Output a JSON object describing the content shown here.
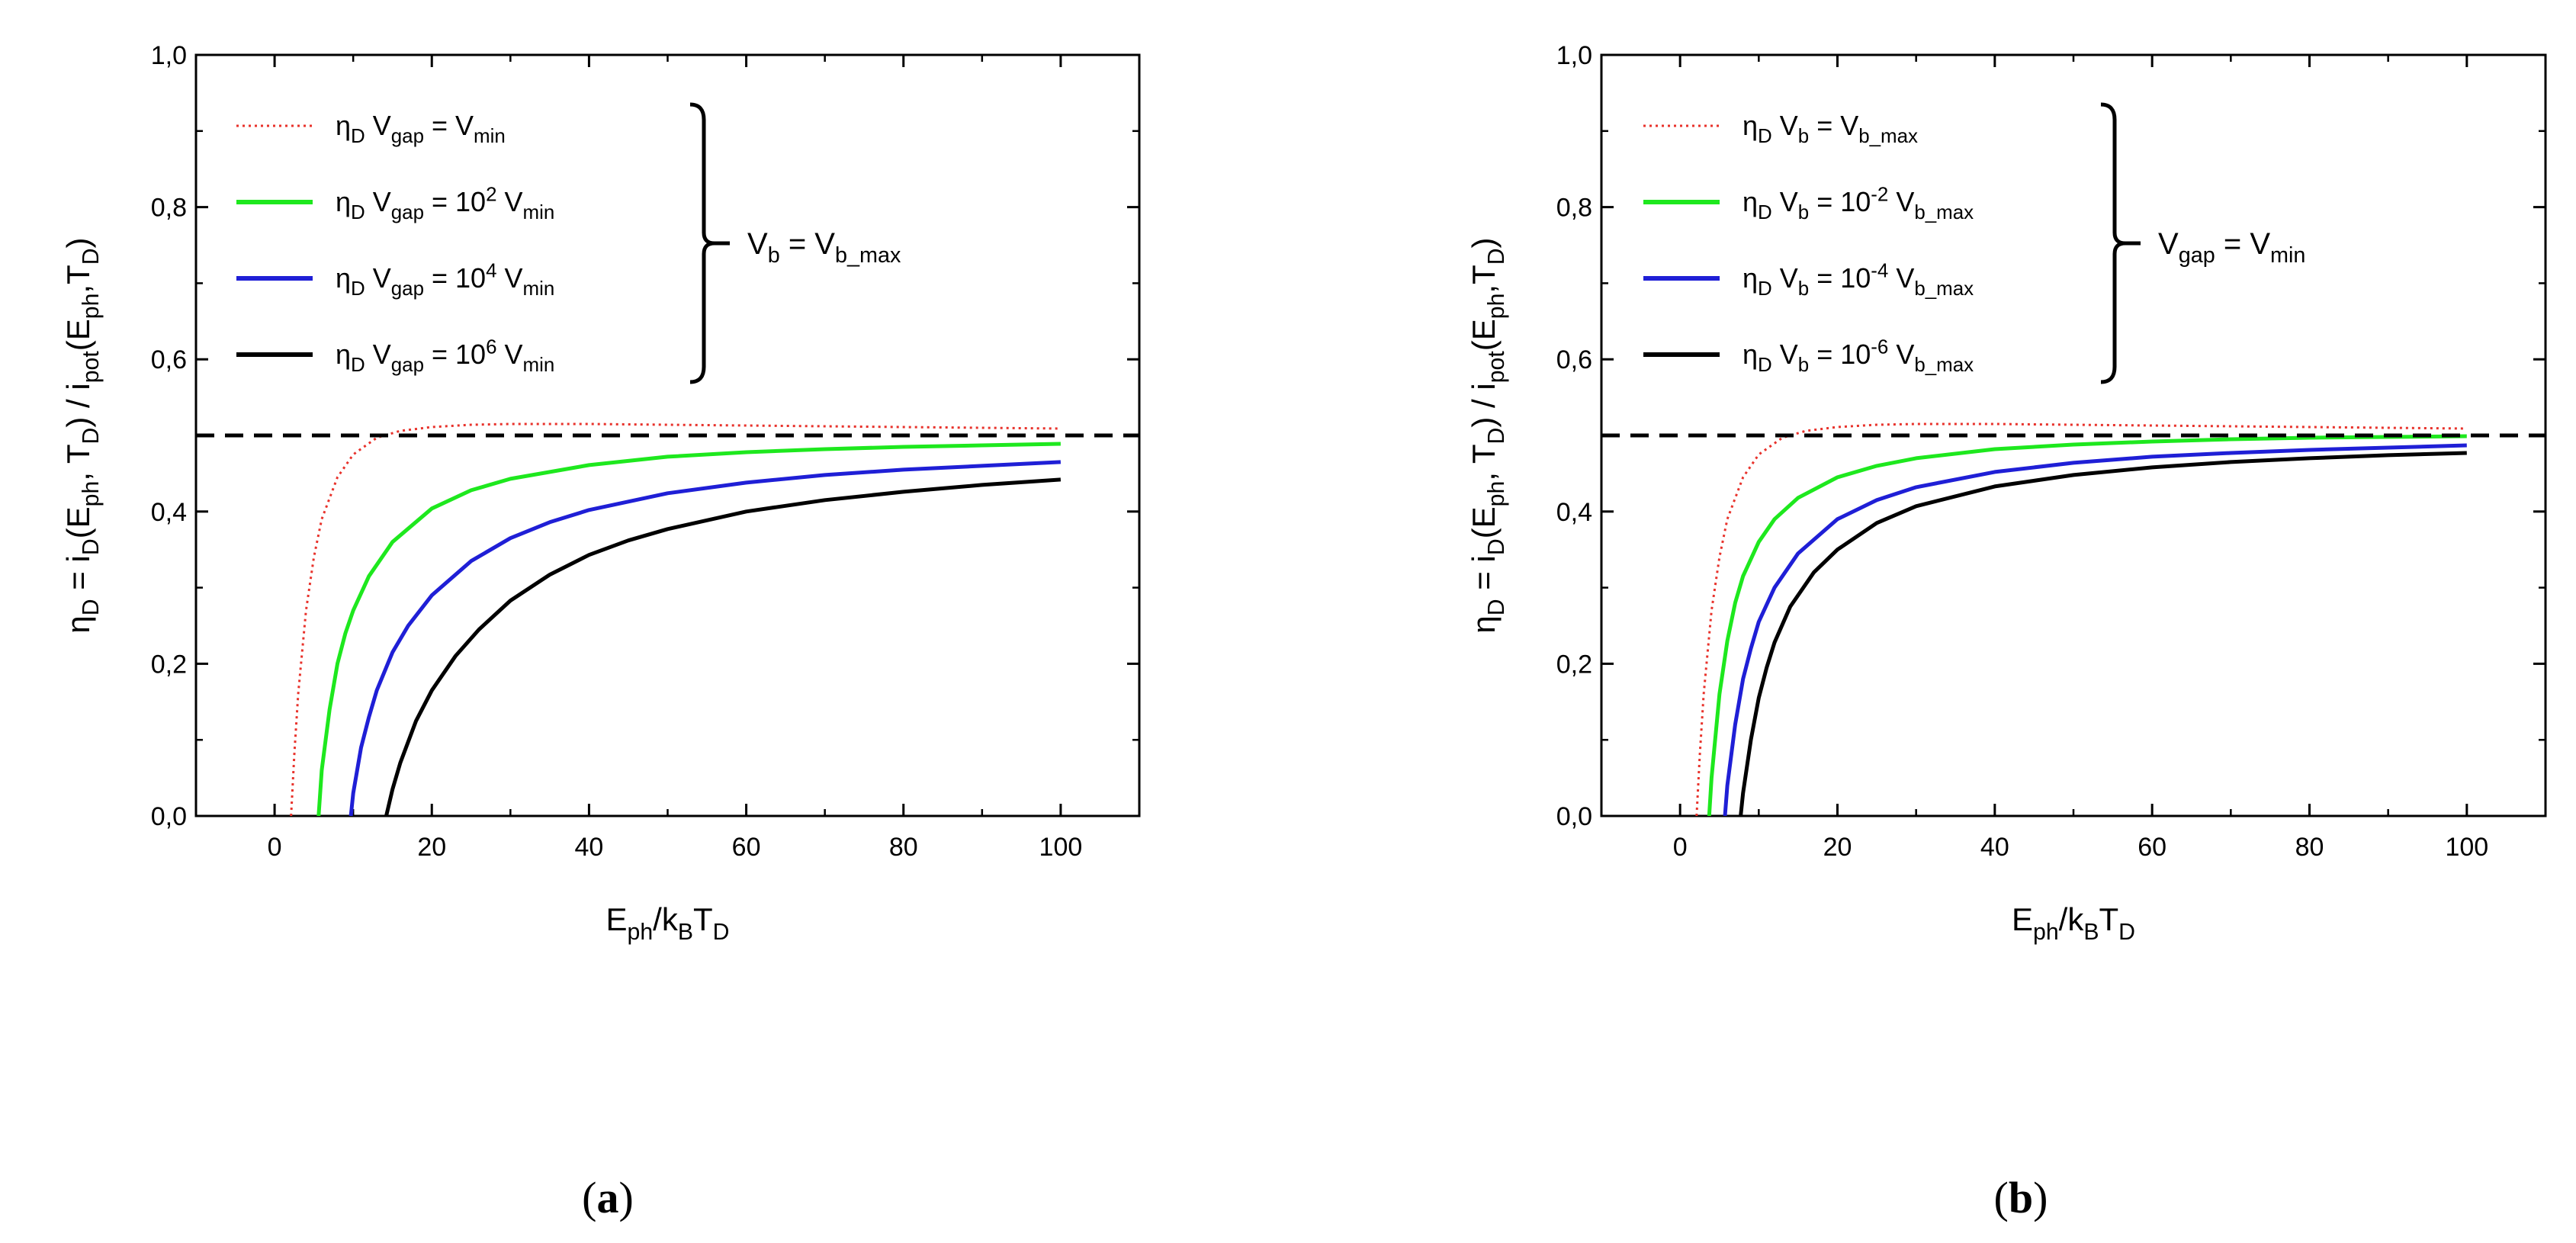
{
  "chart_data": [
    {
      "type": "line",
      "panel": "(a)",
      "panel_label": "(a)",
      "xlabel": "E_ph/k_BT_D",
      "xlabel_parts": [
        [
          "E",
          ""
        ],
        [
          "ph",
          "sub"
        ],
        [
          "/k",
          ""
        ],
        [
          "B",
          "sub"
        ],
        [
          "T",
          ""
        ],
        [
          "D",
          "sub"
        ]
      ],
      "ylabel": "η_D = i_D(E_ph, T_D) / i_pot(E_ph, T_D)",
      "ylabel_parts": [
        [
          "η",
          ""
        ],
        [
          "D",
          "sub"
        ],
        [
          " = i",
          ""
        ],
        [
          "D",
          "sub"
        ],
        [
          "(E",
          ""
        ],
        [
          "ph",
          "sub"
        ],
        [
          ", T",
          ""
        ],
        [
          "D",
          "sub"
        ],
        [
          ") / i",
          ""
        ],
        [
          "pot",
          "sub"
        ],
        [
          "(E",
          ""
        ],
        [
          "ph",
          "sub"
        ],
        [
          ",T",
          ""
        ],
        [
          "D",
          "sub"
        ],
        [
          ")",
          ""
        ]
      ],
      "xlim": [
        -10,
        110
      ],
      "ylim": [
        0.0,
        1.0
      ],
      "xticks": [
        "0",
        "20",
        "40",
        "60",
        "80",
        "100"
      ],
      "yticks": [
        "0,0",
        "0,2",
        "0,4",
        "0,6",
        "0,8",
        "1,0"
      ],
      "reference_line": {
        "y": 0.5,
        "style": "dashed",
        "color": "#000000"
      },
      "series": [
        {
          "name": "η_D V_gap = V_min",
          "color": "#e8322b",
          "style": "dotted",
          "legend_parts": [
            [
              "η",
              ""
            ],
            [
              "D",
              "sub"
            ],
            [
              "  V",
              ""
            ],
            [
              "gap",
              "sub"
            ],
            [
              " = V",
              ""
            ],
            [
              "min",
              "sub"
            ]
          ],
          "x": [
            2.1,
            2.5,
            3,
            4,
            5,
            6,
            8,
            10,
            13,
            16,
            20,
            25,
            30,
            40,
            50,
            60,
            70,
            80,
            90,
            100
          ],
          "y": [
            0.0,
            0.08,
            0.16,
            0.27,
            0.34,
            0.39,
            0.445,
            0.475,
            0.497,
            0.506,
            0.511,
            0.514,
            0.515,
            0.515,
            0.514,
            0.513,
            0.512,
            0.511,
            0.51,
            0.509
          ]
        },
        {
          "name": "η_D V_gap = 10^2 V_min",
          "color": "#1ee81e",
          "style": "solid",
          "legend_parts": [
            [
              "η",
              ""
            ],
            [
              "D",
              "sub"
            ],
            [
              "  V",
              ""
            ],
            [
              "gap",
              "sub"
            ],
            [
              " = 10",
              ""
            ],
            [
              "2",
              "sup"
            ],
            [
              " V",
              ""
            ],
            [
              "min",
              "sub"
            ]
          ],
          "x": [
            5.6,
            6,
            7,
            8,
            9,
            10,
            12,
            15,
            20,
            25,
            30,
            40,
            50,
            60,
            70,
            80,
            90,
            100
          ],
          "y": [
            0.0,
            0.06,
            0.14,
            0.2,
            0.24,
            0.27,
            0.315,
            0.36,
            0.404,
            0.428,
            0.443,
            0.461,
            0.472,
            0.478,
            0.482,
            0.485,
            0.487,
            0.489
          ]
        },
        {
          "name": "η_D V_gap = 10^4 V_min",
          "color": "#1f1fd6",
          "style": "solid",
          "legend_parts": [
            [
              "η",
              ""
            ],
            [
              "D",
              "sub"
            ],
            [
              "  V",
              ""
            ],
            [
              "gap",
              "sub"
            ],
            [
              " = 10",
              ""
            ],
            [
              "4",
              "sup"
            ],
            [
              " V",
              ""
            ],
            [
              "min",
              "sub"
            ]
          ],
          "x": [
            9.7,
            10,
            11,
            12,
            13,
            15,
            17,
            20,
            25,
            30,
            35,
            40,
            50,
            60,
            70,
            80,
            90,
            100
          ],
          "y": [
            0.0,
            0.03,
            0.09,
            0.13,
            0.165,
            0.215,
            0.25,
            0.29,
            0.335,
            0.365,
            0.386,
            0.402,
            0.424,
            0.438,
            0.448,
            0.455,
            0.46,
            0.465
          ]
        },
        {
          "name": "η_D V_gap = 10^6 V_min",
          "color": "#000000",
          "style": "solid",
          "legend_parts": [
            [
              "η",
              ""
            ],
            [
              "D",
              "sub"
            ],
            [
              "  V",
              ""
            ],
            [
              "gap",
              "sub"
            ],
            [
              " = 10",
              ""
            ],
            [
              "6",
              "sup"
            ],
            [
              " V",
              ""
            ],
            [
              "min",
              "sub"
            ]
          ],
          "x": [
            14.2,
            15,
            16,
            18,
            20,
            23,
            26,
            30,
            35,
            40,
            45,
            50,
            60,
            70,
            80,
            90,
            100
          ],
          "y": [
            0.0,
            0.035,
            0.07,
            0.125,
            0.165,
            0.21,
            0.245,
            0.283,
            0.317,
            0.343,
            0.362,
            0.377,
            0.4,
            0.415,
            0.426,
            0.435,
            0.442
          ]
        }
      ],
      "bracket_label": "V_b = V_b_max",
      "bracket_parts": [
        [
          "V",
          ""
        ],
        [
          "b",
          "sub"
        ],
        [
          " = V",
          ""
        ],
        [
          "b_max",
          "sub"
        ]
      ]
    },
    {
      "type": "line",
      "panel": "(b)",
      "panel_label": "(b)",
      "xlabel": "E_ph/k_BT_D",
      "xlabel_parts": [
        [
          "E",
          ""
        ],
        [
          "ph",
          "sub"
        ],
        [
          "/k",
          ""
        ],
        [
          "B",
          "sub"
        ],
        [
          "T",
          ""
        ],
        [
          "D",
          "sub"
        ]
      ],
      "ylabel": "η_D = i_D(E_ph, T_D) / i_pot(E_ph, T_D)",
      "ylabel_parts": [
        [
          "η",
          ""
        ],
        [
          "D",
          "sub"
        ],
        [
          " = i",
          ""
        ],
        [
          "D",
          "sub"
        ],
        [
          "(E",
          ""
        ],
        [
          "ph",
          "sub"
        ],
        [
          ", T",
          ""
        ],
        [
          "D",
          "sub"
        ],
        [
          ") / i",
          ""
        ],
        [
          "pot",
          "sub"
        ],
        [
          "(E",
          ""
        ],
        [
          "ph",
          "sub"
        ],
        [
          ",T",
          ""
        ],
        [
          "D",
          "sub"
        ],
        [
          ")",
          ""
        ]
      ],
      "xlim": [
        -10,
        110
      ],
      "ylim": [
        0.0,
        1.0
      ],
      "xticks": [
        "0",
        "20",
        "40",
        "60",
        "80",
        "100"
      ],
      "yticks": [
        "0,0",
        "0,2",
        "0,4",
        "0,6",
        "0,8",
        "1,0"
      ],
      "reference_line": {
        "y": 0.5,
        "style": "dashed",
        "color": "#000000"
      },
      "series": [
        {
          "name": "η_D V_b = V_b_max",
          "color": "#e8322b",
          "style": "dotted",
          "legend_parts": [
            [
              "η",
              ""
            ],
            [
              "D",
              "sub"
            ],
            [
              "  V",
              ""
            ],
            [
              "b",
              "sub"
            ],
            [
              " = V",
              ""
            ],
            [
              "b_max",
              "sub"
            ]
          ],
          "x": [
            2.1,
            2.5,
            3,
            4,
            5,
            6,
            8,
            10,
            13,
            16,
            20,
            25,
            30,
            40,
            50,
            60,
            70,
            80,
            90,
            100
          ],
          "y": [
            0.0,
            0.08,
            0.16,
            0.27,
            0.34,
            0.39,
            0.445,
            0.475,
            0.497,
            0.506,
            0.511,
            0.514,
            0.515,
            0.515,
            0.514,
            0.513,
            0.512,
            0.511,
            0.51,
            0.509
          ]
        },
        {
          "name": "η_D V_b = 10^-2 V_b_max",
          "color": "#1ee81e",
          "style": "solid",
          "legend_parts": [
            [
              "η",
              ""
            ],
            [
              "D",
              "sub"
            ],
            [
              "  V",
              ""
            ],
            [
              "b",
              "sub"
            ],
            [
              " = 10",
              ""
            ],
            [
              "-2",
              "sup"
            ],
            [
              " V",
              ""
            ],
            [
              "b_max",
              "sub"
            ]
          ],
          "x": [
            3.7,
            4,
            5,
            6,
            7,
            8,
            10,
            12,
            15,
            20,
            25,
            30,
            40,
            50,
            60,
            70,
            80,
            90,
            100
          ],
          "y": [
            0.0,
            0.05,
            0.16,
            0.23,
            0.28,
            0.315,
            0.36,
            0.39,
            0.418,
            0.445,
            0.46,
            0.47,
            0.482,
            0.488,
            0.492,
            0.495,
            0.497,
            0.498,
            0.499
          ]
        },
        {
          "name": "η_D V_b = 10^-4 V_b_max",
          "color": "#1f1fd6",
          "style": "solid",
          "legend_parts": [
            [
              "η",
              ""
            ],
            [
              "D",
              "sub"
            ],
            [
              "  V",
              ""
            ],
            [
              "b",
              "sub"
            ],
            [
              " = 10",
              ""
            ],
            [
              "-4",
              "sup"
            ],
            [
              " V",
              ""
            ],
            [
              "b_max",
              "sub"
            ]
          ],
          "x": [
            5.7,
            6,
            7,
            8,
            9,
            10,
            12,
            15,
            20,
            25,
            30,
            40,
            50,
            60,
            70,
            80,
            90,
            100
          ],
          "y": [
            0.0,
            0.04,
            0.12,
            0.18,
            0.22,
            0.255,
            0.3,
            0.345,
            0.39,
            0.415,
            0.432,
            0.452,
            0.464,
            0.472,
            0.477,
            0.481,
            0.484,
            0.487
          ]
        },
        {
          "name": "η_D V_b = 10^-6 V_b_max",
          "color": "#000000",
          "style": "solid",
          "legend_parts": [
            [
              "η",
              ""
            ],
            [
              "D",
              "sub"
            ],
            [
              "  V",
              ""
            ],
            [
              "b",
              "sub"
            ],
            [
              " = 10",
              ""
            ],
            [
              "-6",
              "sup"
            ],
            [
              " V",
              ""
            ],
            [
              "b_max",
              "sub"
            ]
          ],
          "x": [
            7.7,
            8,
            9,
            10,
            11,
            12,
            14,
            17,
            20,
            25,
            30,
            40,
            50,
            60,
            70,
            80,
            90,
            100
          ],
          "y": [
            0.0,
            0.03,
            0.1,
            0.155,
            0.195,
            0.228,
            0.275,
            0.32,
            0.35,
            0.385,
            0.407,
            0.433,
            0.448,
            0.458,
            0.465,
            0.47,
            0.474,
            0.477
          ]
        }
      ],
      "bracket_label": "V_gap = V_min",
      "bracket_parts": [
        [
          "V",
          ""
        ],
        [
          "gap",
          "sub"
        ],
        [
          " = V",
          ""
        ],
        [
          "min",
          "sub"
        ]
      ]
    }
  ]
}
